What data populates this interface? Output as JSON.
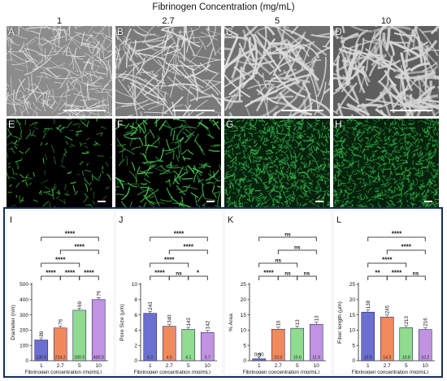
{
  "figure_title": "Fibrinogen Concentration (mg/mL)",
  "concentrations": [
    "1",
    "2.7",
    "5",
    "10"
  ],
  "sem_panels": [
    "A",
    "B",
    "C",
    "D"
  ],
  "fluor_panels": [
    "E",
    "F",
    "G",
    "H"
  ],
  "colors": {
    "bar_1": "#6b6fd0",
    "bar_2_7": "#f08a5d",
    "bar_5": "#8fdc8f",
    "bar_10": "#c193e0",
    "fluor_green": "#3fbf4a",
    "frame": "#16305a"
  },
  "chart_data": [
    {
      "panel": "I",
      "type": "bar",
      "xlabel": "Fibrinogen concentration (mg/mL)",
      "ylabel": "Diameter (nm)",
      "categories": [
        "1",
        "2.7",
        "5",
        "10"
      ],
      "values": [
        135.5,
        214.2,
        330.5,
        400.0
      ],
      "bar_labels": [
        "135.5",
        "214.2",
        "330.5",
        "400.0"
      ],
      "n_labels": [
        "89",
        "76",
        "69",
        "76"
      ],
      "ylim": [
        0,
        500
      ],
      "yticks": [
        "0",
        "100",
        "200",
        "300",
        "400",
        "500"
      ],
      "significance": [
        {
          "from": 0,
          "to": 1,
          "label": "****"
        },
        {
          "from": 2,
          "to": 3,
          "label": "****"
        },
        {
          "from": 1,
          "to": 2,
          "label": "****"
        },
        {
          "from": 0,
          "to": 2,
          "label": "****"
        },
        {
          "from": 1,
          "to": 3,
          "label": "****"
        },
        {
          "from": 0,
          "to": 3,
          "label": "****"
        }
      ]
    },
    {
      "panel": "J",
      "type": "bar",
      "xlabel": "Fibrinogen concentration (mg/mL)",
      "ylabel": "Pore Size (μm)",
      "categories": [
        "1",
        "2.7",
        "5",
        "10"
      ],
      "values": [
        6.2,
        4.5,
        4.1,
        3.7
      ],
      "bar_labels": [
        "6.2",
        "4.5",
        "4.1",
        "3.7"
      ],
      "n_labels": [
        "243",
        "340",
        "143",
        "142"
      ],
      "ylim": [
        0,
        10
      ],
      "yticks": [
        "0",
        "2",
        "4",
        "6",
        "8",
        "10"
      ],
      "significance": [
        {
          "from": 0,
          "to": 1,
          "label": "****"
        },
        {
          "from": 1,
          "to": 2,
          "label": "ns"
        },
        {
          "from": 2,
          "to": 3,
          "label": "*"
        },
        {
          "from": 0,
          "to": 2,
          "label": "****"
        },
        {
          "from": 1,
          "to": 3,
          "label": "****"
        },
        {
          "from": 0,
          "to": 3,
          "label": "****"
        }
      ]
    },
    {
      "panel": "K",
      "type": "bar",
      "xlabel": "Fibrinogen concentration (mg/mL)",
      "ylabel": "% Area",
      "categories": [
        "1",
        "2.7",
        "5",
        "10"
      ],
      "values": [
        0.6,
        10.3,
        10.6,
        11.9
      ],
      "bar_labels": [
        "",
        "10.3",
        "10.6",
        "11.9"
      ],
      "value_label_above": "0.60",
      "n_labels": [
        "2",
        "16",
        "13",
        "13"
      ],
      "ylim": [
        0,
        25
      ],
      "yticks": [
        "0",
        "5",
        "10",
        "15",
        "20",
        "25"
      ],
      "significance": [
        {
          "from": 0,
          "to": 1,
          "label": "****"
        },
        {
          "from": 1,
          "to": 2,
          "label": "ns"
        },
        {
          "from": 2,
          "to": 3,
          "label": "ns"
        },
        {
          "from": 0,
          "to": 2,
          "label": "ns"
        },
        {
          "from": 1,
          "to": 3,
          "label": "ns"
        },
        {
          "from": 0,
          "to": 3,
          "label": "ns"
        }
      ]
    },
    {
      "panel": "L",
      "type": "bar",
      "xlabel": "Fibrinogen concentration (mg/mL)",
      "ylabel": "Fiber length (μm)",
      "categories": [
        "1",
        "2.7",
        "5",
        "10"
      ],
      "values": [
        15.9,
        14.3,
        10.8,
        10.2
      ],
      "bar_labels": [
        "15.9",
        "14.3",
        "10.8",
        "10.2"
      ],
      "n_labels": [
        "138",
        "245",
        "213",
        "216"
      ],
      "ylim": [
        0,
        25
      ],
      "yticks": [
        "0",
        "5",
        "10",
        "15",
        "20",
        "25"
      ],
      "significance": [
        {
          "from": 0,
          "to": 1,
          "label": "**"
        },
        {
          "from": 2,
          "to": 3,
          "label": "ns"
        },
        {
          "from": 1,
          "to": 2,
          "label": "****"
        },
        {
          "from": 0,
          "to": 2,
          "label": "****"
        },
        {
          "from": 1,
          "to": 3,
          "label": "****"
        },
        {
          "from": 0,
          "to": 3,
          "label": "****"
        }
      ]
    }
  ]
}
